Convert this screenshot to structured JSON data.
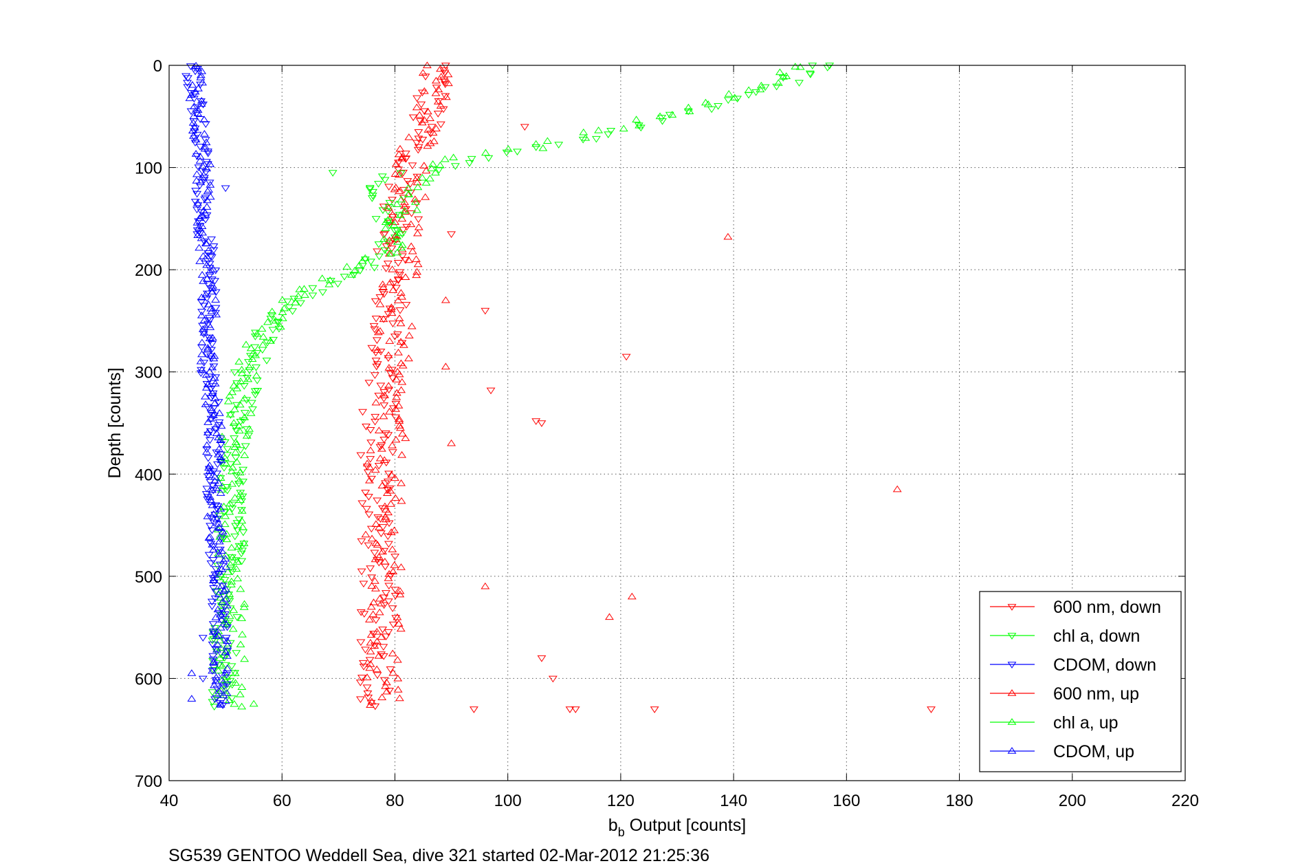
{
  "chart_data": {
    "type": "scatter",
    "xlabel_main": "b",
    "xlabel_sub": "b",
    "xlabel_rest": " Output [counts]",
    "ylabel": "Depth [counts]",
    "footer": "SG539 GENTOO Weddell Sea, dive 321 started 02-Mar-2012 21:25:36",
    "xlim": [
      40,
      220
    ],
    "ylim": [
      0,
      700
    ],
    "y_reversed": true,
    "grid": "dotted",
    "legend_position": "bottom-right",
    "xticks": [
      "40",
      "60",
      "80",
      "100",
      "120",
      "140",
      "160",
      "180",
      "200",
      "220"
    ],
    "yticks": [
      "0",
      "100",
      "200",
      "300",
      "400",
      "500",
      "600",
      "700"
    ],
    "series": [
      {
        "name": "600 nm, down",
        "color": "#ff0000",
        "marker": "triangle-down",
        "profile": [
          [
            0,
            88
          ],
          [
            20,
            87
          ],
          [
            40,
            86
          ],
          [
            60,
            85
          ],
          [
            80,
            83
          ],
          [
            100,
            82
          ],
          [
            120,
            82
          ],
          [
            140,
            81
          ],
          [
            160,
            81
          ],
          [
            180,
            80
          ],
          [
            200,
            80
          ],
          [
            220,
            79
          ],
          [
            250,
            79
          ],
          [
            300,
            78
          ],
          [
            350,
            77
          ],
          [
            400,
            77
          ],
          [
            450,
            77
          ],
          [
            500,
            77
          ],
          [
            550,
            77
          ],
          [
            600,
            77
          ],
          [
            630,
            77
          ]
        ],
        "outliers": [
          [
            60,
            103
          ],
          [
            165,
            90
          ],
          [
            240,
            96
          ],
          [
            285,
            121
          ],
          [
            318,
            97
          ],
          [
            348,
            105
          ],
          [
            350,
            106
          ],
          [
            580,
            106
          ],
          [
            600,
            108
          ],
          [
            630,
            111
          ],
          [
            630,
            112
          ],
          [
            630,
            126
          ],
          [
            630,
            175
          ],
          [
            630,
            94
          ]
        ]
      },
      {
        "name": "chl a, down",
        "color": "#00ff00",
        "marker": "triangle-down",
        "profile": [
          [
            0,
            156
          ],
          [
            20,
            148
          ],
          [
            40,
            136
          ],
          [
            60,
            122
          ],
          [
            80,
            106
          ],
          [
            90,
            98
          ],
          [
            100,
            88
          ],
          [
            110,
            78
          ],
          [
            120,
            74
          ],
          [
            140,
            78
          ],
          [
            160,
            80
          ],
          [
            180,
            79
          ],
          [
            200,
            74
          ],
          [
            210,
            70
          ],
          [
            220,
            66
          ],
          [
            240,
            60
          ],
          [
            260,
            57
          ],
          [
            280,
            56
          ],
          [
            300,
            54
          ],
          [
            350,
            52
          ],
          [
            400,
            51
          ],
          [
            450,
            51
          ],
          [
            500,
            51
          ],
          [
            550,
            50
          ],
          [
            600,
            50
          ],
          [
            630,
            50
          ]
        ],
        "outliers": [
          [
            0,
            157
          ],
          [
            105,
            69
          ]
        ]
      },
      {
        "name": "CDOM, down",
        "color": "#0000ff",
        "marker": "triangle-down",
        "profile": [
          [
            0,
            44
          ],
          [
            50,
            45
          ],
          [
            100,
            46
          ],
          [
            150,
            46
          ],
          [
            200,
            47
          ],
          [
            250,
            47
          ],
          [
            300,
            47
          ],
          [
            350,
            48
          ],
          [
            400,
            48
          ],
          [
            450,
            48
          ],
          [
            500,
            48
          ],
          [
            550,
            49
          ],
          [
            600,
            49
          ],
          [
            630,
            49
          ]
        ],
        "outliers": [
          [
            120,
            50
          ],
          [
            560,
            46
          ],
          [
            600,
            46
          ]
        ]
      },
      {
        "name": "600 nm, up",
        "color": "#ff0000",
        "marker": "triangle-up",
        "profile": [
          [
            0,
            88
          ],
          [
            20,
            87
          ],
          [
            40,
            86
          ],
          [
            60,
            85
          ],
          [
            80,
            84
          ],
          [
            100,
            83
          ],
          [
            120,
            83
          ],
          [
            140,
            82
          ],
          [
            160,
            82
          ],
          [
            180,
            81
          ],
          [
            200,
            81
          ],
          [
            220,
            80
          ],
          [
            250,
            80
          ],
          [
            300,
            79
          ],
          [
            350,
            79
          ],
          [
            400,
            78
          ],
          [
            450,
            78
          ],
          [
            500,
            78
          ],
          [
            550,
            78
          ],
          [
            600,
            78
          ],
          [
            630,
            78
          ]
        ],
        "outliers": [
          [
            168,
            139
          ],
          [
            415,
            169
          ],
          [
            520,
            122
          ],
          [
            540,
            118
          ],
          [
            510,
            96
          ],
          [
            230,
            89
          ],
          [
            295,
            89
          ],
          [
            370,
            90
          ]
        ]
      },
      {
        "name": "chl a, up",
        "color": "#00ff00",
        "marker": "triangle-up",
        "profile": [
          [
            0,
            152
          ],
          [
            20,
            145
          ],
          [
            40,
            134
          ],
          [
            60,
            120
          ],
          [
            80,
            104
          ],
          [
            90,
            92
          ],
          [
            100,
            86
          ],
          [
            120,
            84
          ],
          [
            140,
            82
          ],
          [
            160,
            80
          ],
          [
            180,
            79
          ],
          [
            200,
            72
          ],
          [
            220,
            64
          ],
          [
            240,
            60
          ],
          [
            260,
            57
          ],
          [
            280,
            55
          ],
          [
            300,
            54
          ],
          [
            350,
            52
          ],
          [
            400,
            51
          ],
          [
            450,
            51
          ],
          [
            500,
            51
          ],
          [
            550,
            51
          ],
          [
            600,
            51
          ],
          [
            630,
            51
          ]
        ],
        "outliers": [
          [
            625,
            55
          ]
        ]
      },
      {
        "name": "CDOM, up",
        "color": "#0000ff",
        "marker": "triangle-up",
        "profile": [
          [
            0,
            45
          ],
          [
            50,
            45
          ],
          [
            100,
            46
          ],
          [
            150,
            46
          ],
          [
            200,
            47
          ],
          [
            250,
            47
          ],
          [
            300,
            47
          ],
          [
            350,
            48
          ],
          [
            400,
            48
          ],
          [
            450,
            48
          ],
          [
            500,
            49
          ],
          [
            550,
            49
          ],
          [
            600,
            49
          ],
          [
            630,
            49
          ]
        ],
        "outliers": [
          [
            595,
            44
          ],
          [
            620,
            44
          ]
        ]
      }
    ]
  }
}
